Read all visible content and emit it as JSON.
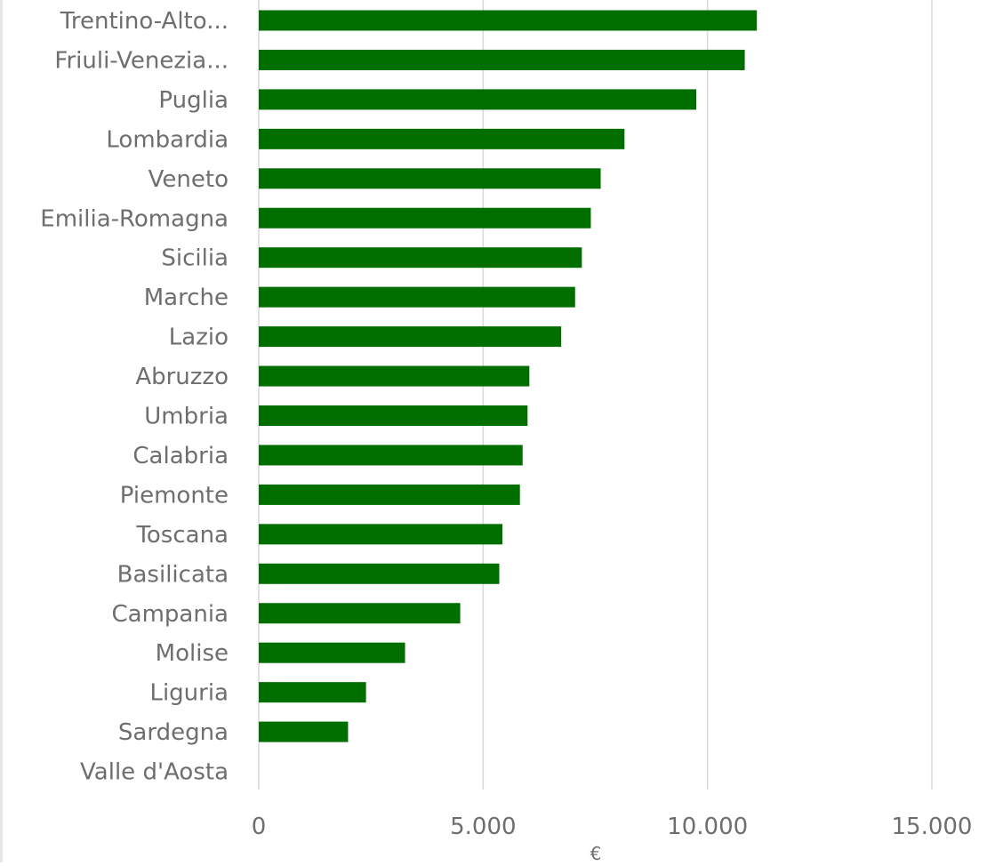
{
  "chart_data": {
    "type": "bar",
    "orientation": "horizontal",
    "categories": [
      "Trentino-Alto...",
      "Friuli-Venezia...",
      "Puglia",
      "Lombardia",
      "Veneto",
      "Emilia-Romagna",
      "Sicilia",
      "Marche",
      "Lazio",
      "Abruzzo",
      "Umbria",
      "Calabria",
      "Piemonte",
      "Toscana",
      "Basilicata",
      "Campania",
      "Molise",
      "Liguria",
      "Sardegna",
      "Valle d'Aosta"
    ],
    "values": [
      11100,
      10830,
      9750,
      8150,
      7620,
      7400,
      7200,
      7050,
      6740,
      6030,
      5990,
      5880,
      5820,
      5430,
      5360,
      4490,
      3260,
      2390,
      1990,
      0
    ],
    "xlim": [
      0,
      15000
    ],
    "xticks": [
      0,
      5000,
      10000,
      15000
    ],
    "xtick_labels": [
      "0",
      "5.000",
      "10.000",
      "15.000"
    ],
    "xlabel": "€",
    "ylabel": "",
    "title": "",
    "grid": "vertical",
    "bar_color": "#006f00",
    "gridline_color": "#d9d9d9",
    "label_color": "#6e6e6e"
  }
}
